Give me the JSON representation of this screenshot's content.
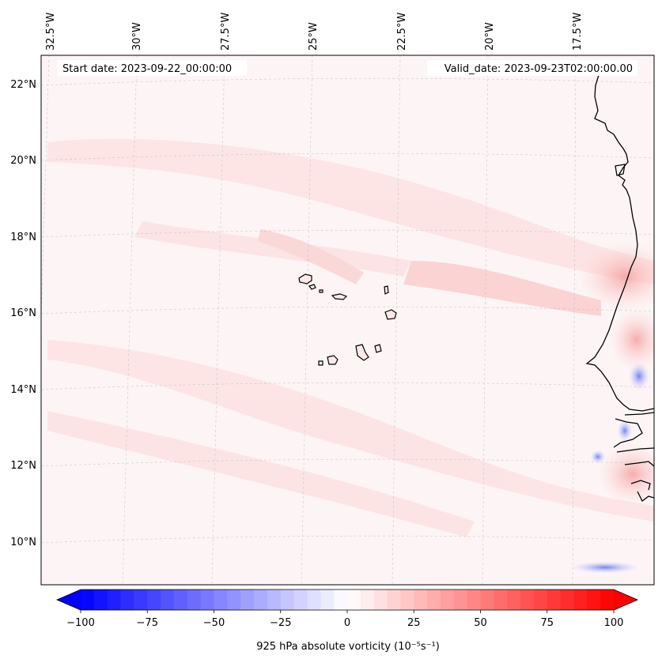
{
  "map": {
    "start_date_label": "Start date: 2023-09-22_00:00:00",
    "valid_date_label": "Valid_date: 2023-09-23T02:00:00.00",
    "lon_labels": [
      "32.5°W",
      "30°W",
      "27.5°W",
      "25°W",
      "22.5°W",
      "20°W",
      "17.5°W"
    ],
    "lat_labels": [
      "22°N",
      "20°N",
      "18°N",
      "16°N",
      "14°N",
      "12°N",
      "10°N"
    ],
    "features": [
      "Cape Verde islands",
      "West African coastline"
    ]
  },
  "colorbar": {
    "label": "925 hPa absolute vorticity (10⁻⁵s⁻¹)",
    "ticks": [
      "−100",
      "−75",
      "−50",
      "−25",
      "0",
      "25",
      "50",
      "75",
      "100"
    ],
    "min": -100,
    "max": 100,
    "extend": "both",
    "colors": {
      "negative": "#0000ff",
      "zero": "#ffffff",
      "positive": "#ff0000"
    }
  }
}
